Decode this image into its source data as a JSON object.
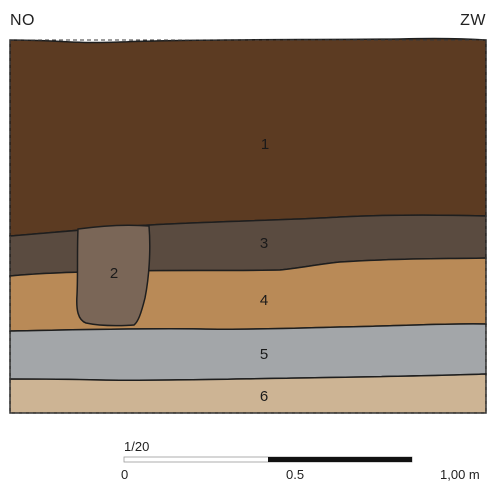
{
  "orientation": {
    "left": "NO",
    "right": "ZW"
  },
  "layers": [
    {
      "number": "1",
      "color": "#5c3b22"
    },
    {
      "number": "2",
      "color": "#7a6657"
    },
    {
      "number": "3",
      "color": "#5a4b40"
    },
    {
      "number": "4",
      "color": "#b98a57"
    },
    {
      "number": "5",
      "color": "#a3a6a9"
    },
    {
      "number": "6",
      "color": "#cdb494"
    }
  ],
  "scale": {
    "ratio": "1/20",
    "start": "0",
    "mid": "0.5",
    "end": "1,00 m",
    "fill_fraction": 0.5
  }
}
